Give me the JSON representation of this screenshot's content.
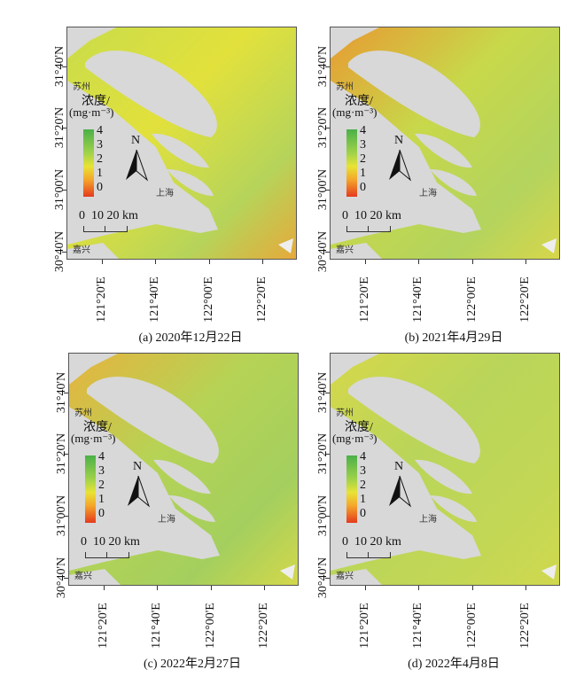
{
  "legend": {
    "title": "浓度/",
    "unit": "(mg·m⁻³)",
    "ticks": [
      "4",
      "3",
      "2",
      "1",
      "0"
    ],
    "north": "N",
    "scale": "0  10 20 km",
    "cities": {
      "suzhou": "苏州",
      "shanghai": "上海",
      "jiaxing": "嘉兴"
    }
  },
  "axes": {
    "y_labels": [
      "31°40'N",
      "31°20'N",
      "31°00'N",
      "30°40'N"
    ],
    "x_labels": [
      "121°20'E",
      "121°40'E",
      "122°00'E",
      "122°20'E"
    ]
  },
  "panels": [
    {
      "caption": "(a) 2020年12月22日",
      "colors": [
        "#c9dc4a",
        "#e2e13c",
        "#b6d45a",
        "#e7a83a"
      ]
    },
    {
      "caption": "(b) 2021年4月29日",
      "colors": [
        "#e79a32",
        "#c8d84a",
        "#b3d45e",
        "#d8d64a"
      ]
    },
    {
      "caption": "(c) 2022年2月27日",
      "colors": [
        "#e6b33e",
        "#b6d355",
        "#a4cf5e",
        "#d5d84a"
      ]
    },
    {
      "caption": "(d) 2022年4月8日",
      "colors": [
        "#d6d84a",
        "#b9d55a",
        "#c3d755",
        "#d0d84e"
      ]
    }
  ]
}
